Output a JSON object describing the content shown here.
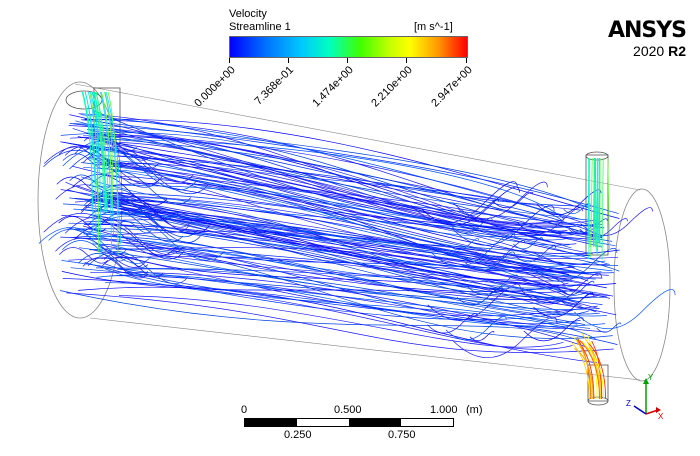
{
  "legend": {
    "title": "Velocity",
    "subtitle": "Streamline 1",
    "units": "[m s^-1]",
    "ticks": [
      "0.000e+00",
      "7.368e-01",
      "1.474e+00",
      "2.210e+00",
      "2.947e+00"
    ],
    "colors": [
      "#0000ff",
      "#00c8ff",
      "#40ff00",
      "#ffff00",
      "#ff0000"
    ]
  },
  "brand": {
    "name": "ANSYS",
    "version": "2020",
    "release": "R2"
  },
  "scale_bar": {
    "top_labels": [
      "0",
      "0.500",
      "1.000"
    ],
    "unit": "(m)",
    "bottom_labels": [
      "0.250",
      "0.750"
    ]
  },
  "triad": {
    "x": "X",
    "y": "Y",
    "z": "Z",
    "x_color": "#d00000",
    "y_color": "#00a000",
    "z_color": "#0000d0"
  }
}
